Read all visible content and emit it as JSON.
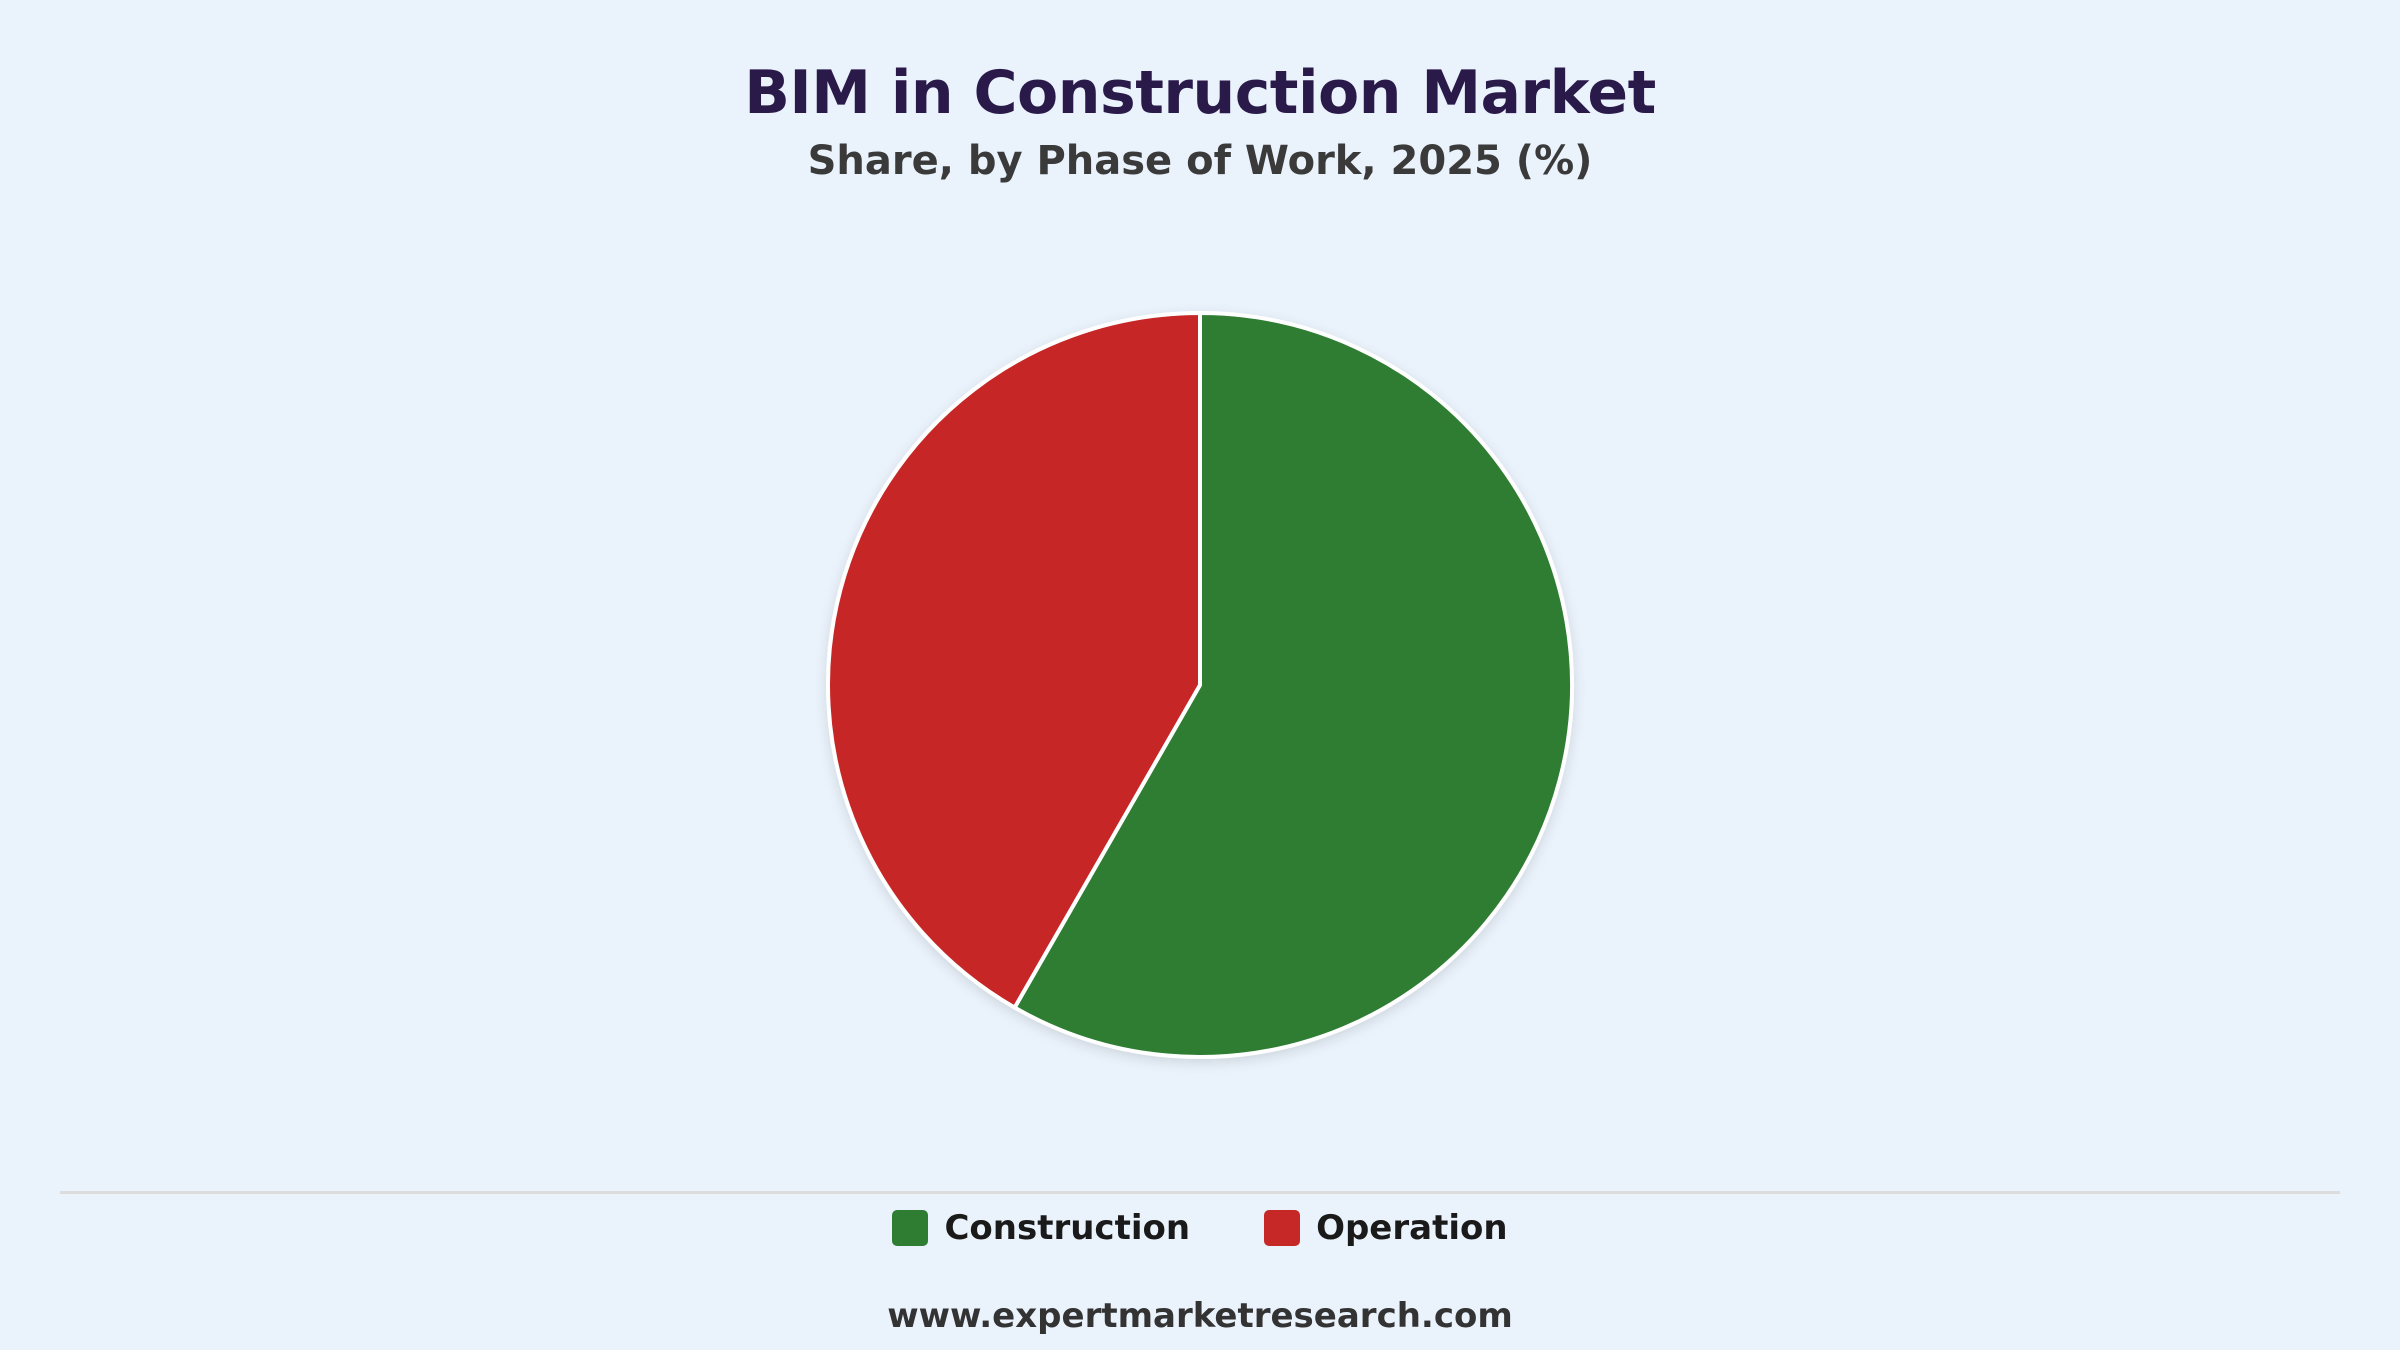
{
  "chart_data": {
    "type": "pie",
    "title": "BIM in Construction Market",
    "subtitle": "Share, by Phase of Work, 2025 (%)",
    "categories": [
      "Construction",
      "Operation"
    ],
    "values": [
      58.3,
      41.7
    ],
    "colors": [
      "#2e7d32",
      "#c62828"
    ],
    "start_angle": "12 o'clock",
    "direction": "clockwise",
    "legend_position": "bottom"
  },
  "footer": {
    "source": "www.expertmarketresearch.com"
  }
}
